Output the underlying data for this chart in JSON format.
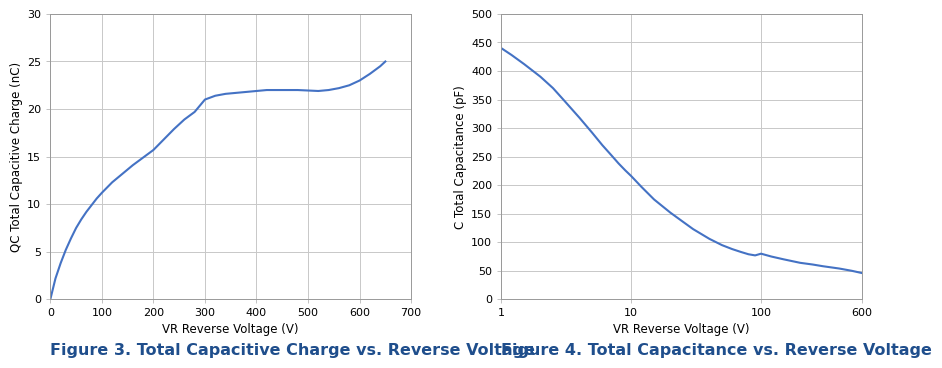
{
  "fig3": {
    "caption": "Figure 3. Total Capacitive Charge vs. Reverse Voltage",
    "xlabel": "VR Reverse Voltage (V)",
    "ylabel": "QC Total Capacitive Charge (nC)",
    "xlim": [
      0,
      700
    ],
    "ylim": [
      0,
      30
    ],
    "xticks": [
      0,
      100,
      200,
      300,
      400,
      500,
      600,
      700
    ],
    "yticks": [
      0,
      5,
      10,
      15,
      20,
      25,
      30
    ],
    "line_color": "#4472c4",
    "x": [
      0,
      10,
      20,
      30,
      40,
      50,
      60,
      70,
      80,
      90,
      100,
      120,
      140,
      160,
      180,
      200,
      220,
      240,
      260,
      280,
      300,
      320,
      340,
      360,
      380,
      400,
      420,
      440,
      460,
      480,
      500,
      520,
      540,
      560,
      580,
      600,
      620,
      640,
      650
    ],
    "y": [
      0,
      2.2,
      3.8,
      5.2,
      6.4,
      7.5,
      8.4,
      9.2,
      9.9,
      10.6,
      11.2,
      12.3,
      13.2,
      14.1,
      14.9,
      15.7,
      16.8,
      17.9,
      18.9,
      19.7,
      21.0,
      21.4,
      21.6,
      21.7,
      21.8,
      21.9,
      22.0,
      22.0,
      22.0,
      22.0,
      21.95,
      21.9,
      22.0,
      22.2,
      22.5,
      23.0,
      23.7,
      24.5,
      25.0
    ]
  },
  "fig4": {
    "caption": "Figure 4. Total Capacitance vs. Reverse Voltage",
    "xlabel": "VR Reverse Voltage (V)",
    "ylabel": "C Total Capacitance (pF)",
    "xlim": [
      1,
      600
    ],
    "ylim": [
      0,
      500
    ],
    "yticks": [
      0,
      50,
      100,
      150,
      200,
      250,
      300,
      350,
      400,
      450,
      500
    ],
    "xticks_log": [
      1,
      10,
      100,
      600
    ],
    "xtick_labels": [
      "1",
      "10",
      "100",
      "600"
    ],
    "line_color": "#4472c4",
    "x": [
      1,
      1.2,
      1.5,
      2,
      2.5,
      3,
      4,
      5,
      6,
      7,
      8,
      9,
      10,
      12,
      15,
      20,
      25,
      30,
      40,
      50,
      60,
      70,
      80,
      90,
      100,
      120,
      150,
      200,
      250,
      300,
      400,
      500,
      600
    ],
    "y": [
      440,
      428,
      412,
      390,
      370,
      350,
      318,
      292,
      270,
      253,
      238,
      226,
      216,
      197,
      175,
      152,
      136,
      123,
      106,
      95,
      88,
      83,
      79,
      77,
      80,
      75,
      70,
      64,
      61,
      58,
      54,
      50,
      46
    ]
  },
  "bg_color": "#ffffff",
  "grid_color": "#c8c8c8",
  "caption_color": "#1f4e8c",
  "line_width": 1.5,
  "caption_fontsize": 11.5,
  "axis_label_fontsize": 8.5,
  "tick_fontsize": 8
}
